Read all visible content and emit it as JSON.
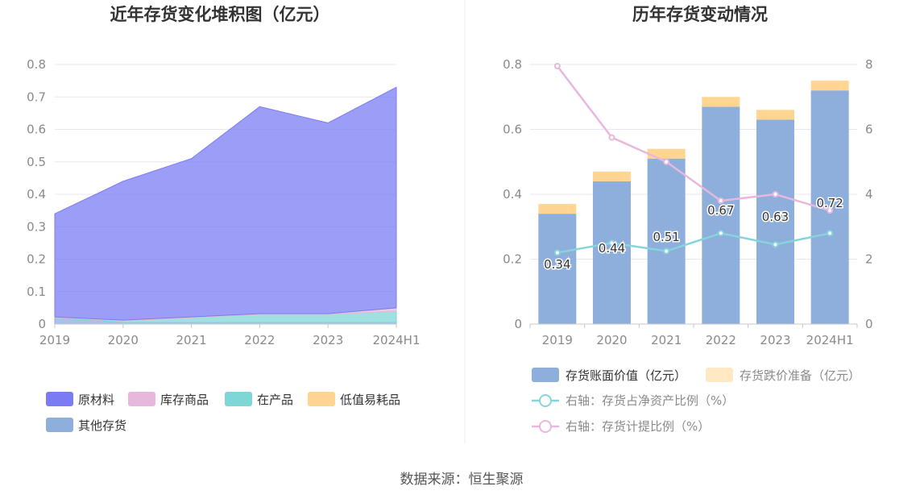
{
  "source_text": "数据来源：恒生聚源",
  "chart_data": [
    {
      "type": "area",
      "title": "近年存货变化堆积图（亿元）",
      "categories": [
        "2019",
        "2020",
        "2021",
        "2022",
        "2023",
        "2024H1"
      ],
      "yticks": [
        "0",
        "0.1",
        "0.2",
        "0.3",
        "0.4",
        "0.5",
        "0.6",
        "0.7",
        "0.8"
      ],
      "ylim": [
        0,
        0.8
      ],
      "stacked": true,
      "grid": true,
      "legend_position": "bottom",
      "series": [
        {
          "name": "其他存货",
          "color": "#8eaedb",
          "values": [
            0.02,
            0.005,
            0.005,
            0.005,
            0.005,
            0.005
          ]
        },
        {
          "name": "在产品",
          "color": "#7fd6d6",
          "values": [
            0.0,
            0.005,
            0.015,
            0.025,
            0.025,
            0.035
          ]
        },
        {
          "name": "库存商品",
          "color": "#e8b8dc",
          "values": [
            0.002,
            0.002,
            0.002,
            0.002,
            0.002,
            0.01
          ]
        },
        {
          "name": "低值易耗品",
          "color": "#ffd591",
          "values": [
            0.0,
            0.0,
            0.0,
            0.0,
            0.0,
            0.0
          ]
        },
        {
          "name": "原材料",
          "color": "#7b7cf4",
          "values": [
            0.318,
            0.428,
            0.488,
            0.638,
            0.588,
            0.68
          ]
        }
      ],
      "legend_order": [
        "原材料",
        "库存商品",
        "在产品",
        "低值易耗品",
        "其他存货"
      ]
    },
    {
      "type": "bar",
      "title": "历年存货变动情况",
      "categories": [
        "2019",
        "2020",
        "2021",
        "2022",
        "2023",
        "2024H1"
      ],
      "yticks_left": [
        "0",
        "0.2",
        "0.4",
        "0.6",
        "0.8"
      ],
      "yticks_right": [
        "0",
        "2",
        "4",
        "6",
        "8"
      ],
      "ylim_left": [
        0,
        0.8
      ],
      "ylim_right": [
        0,
        8
      ],
      "grid": true,
      "legend_position": "bottom",
      "bar_series": [
        {
          "name": "存货账面价值（亿元）",
          "color": "#8eaedb",
          "values": [
            0.34,
            0.44,
            0.51,
            0.67,
            0.63,
            0.72
          ],
          "labels": [
            "0.34",
            "0.44",
            "0.51",
            "0.67",
            "0.63",
            "0.72"
          ]
        },
        {
          "name": "存货跌价准备（亿元）",
          "color": "#ffd591",
          "values": [
            0.03,
            0.03,
            0.03,
            0.03,
            0.03,
            0.03
          ]
        }
      ],
      "line_series": [
        {
          "name": "右轴：存货占净资产比例（%）",
          "color": "#86d4dc",
          "values": [
            2.2,
            2.5,
            2.25,
            2.8,
            2.45,
            2.8
          ]
        },
        {
          "name": "右轴：存货计提比例（%）",
          "color": "#e8b8dc",
          "values": [
            7.95,
            5.75,
            5.0,
            3.8,
            4.0,
            3.5
          ]
        }
      ]
    }
  ]
}
